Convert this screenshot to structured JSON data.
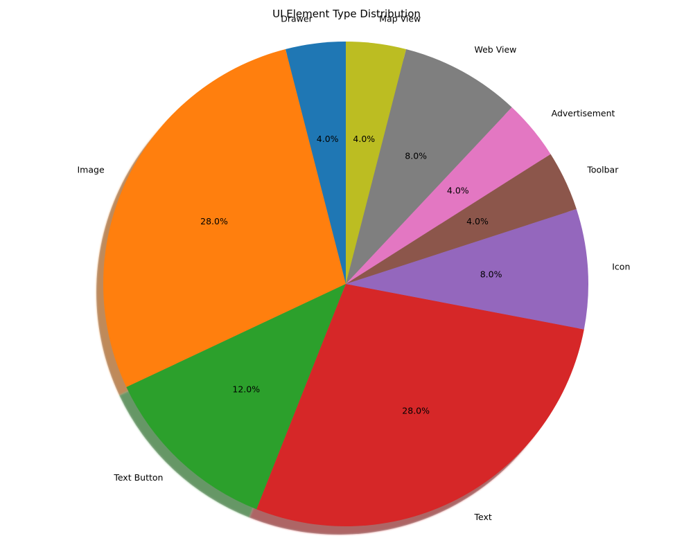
{
  "chart_data": {
    "type": "pie",
    "title": "UI Element Type Distribution",
    "autopct_format": "1 decimal percent",
    "start_angle_deg": 90,
    "direction": "counterclockwise",
    "shadow": true,
    "slices": [
      {
        "label": "Drawer",
        "percent": 4.0,
        "pct_text": "4.0%",
        "color": "#1f77b4"
      },
      {
        "label": "Image",
        "percent": 28.0,
        "pct_text": "28.0%",
        "color": "#ff7f0e"
      },
      {
        "label": "Text Button",
        "percent": 12.0,
        "pct_text": "12.0%",
        "color": "#2ca02c"
      },
      {
        "label": "Text",
        "percent": 28.0,
        "pct_text": "28.0%",
        "color": "#d62728"
      },
      {
        "label": "Icon",
        "percent": 8.0,
        "pct_text": "8.0%",
        "color": "#9467bd"
      },
      {
        "label": "Toolbar",
        "percent": 4.0,
        "pct_text": "4.0%",
        "color": "#8c564b"
      },
      {
        "label": "Advertisement",
        "percent": 4.0,
        "pct_text": "4.0%",
        "color": "#e377c2"
      },
      {
        "label": "Web View",
        "percent": 8.0,
        "pct_text": "8.0%",
        "color": "#7f7f7f"
      },
      {
        "label": "Map View",
        "percent": 4.0,
        "pct_text": "4.0%",
        "color": "#bcbd22"
      }
    ]
  }
}
